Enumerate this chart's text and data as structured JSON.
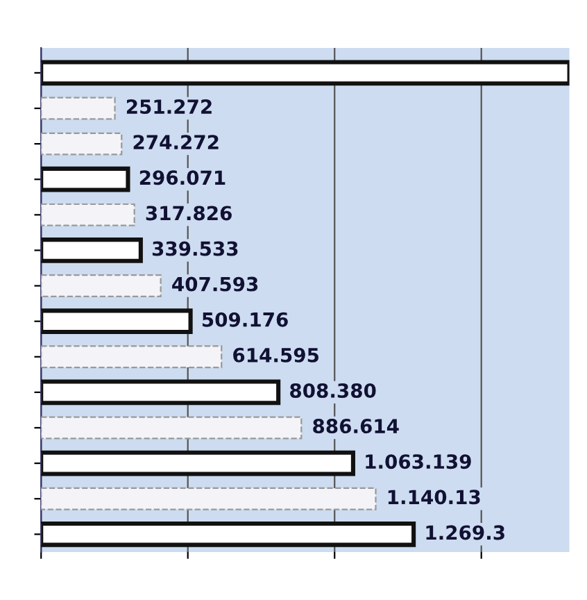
{
  "chart_data": {
    "type": "bar",
    "orientation": "horizontal",
    "categories": [
      null,
      null,
      null,
      null,
      null,
      null,
      null,
      null,
      null,
      null,
      null,
      null,
      null,
      null
    ],
    "values": [
      1800000,
      251272,
      274272,
      296071,
      317826,
      339533,
      407593,
      509176,
      614595,
      808380,
      886614,
      1063139,
      1140130,
      1269300
    ],
    "value_labels": [
      null,
      "251.272",
      "274.272",
      "296.071",
      "317.826",
      "339.533",
      "407.593",
      "509.176",
      "614.595",
      "808.380",
      "886.614",
      "1.063.139",
      "1.140.13",
      "1.269.3"
    ],
    "colors": [
      "#ffffff",
      "#f4f4f8",
      "#f4f4f8",
      "#ffffff",
      "#f4f4f8",
      "#ffffff",
      "#f4f4f8",
      "#ffffff",
      "#f4f4f8",
      "#ffffff",
      "#f4f4f8",
      "#ffffff",
      "#f4f4f8",
      "#ffffff"
    ],
    "xlim": [
      0,
      1800000
    ],
    "xticks": [
      {
        "value": 0,
        "label": null
      },
      {
        "value": 500000,
        "label": null
      },
      {
        "value": 1000000,
        "label": null
      },
      {
        "value": 1500000,
        "label": null
      }
    ],
    "grid": "x"
  }
}
